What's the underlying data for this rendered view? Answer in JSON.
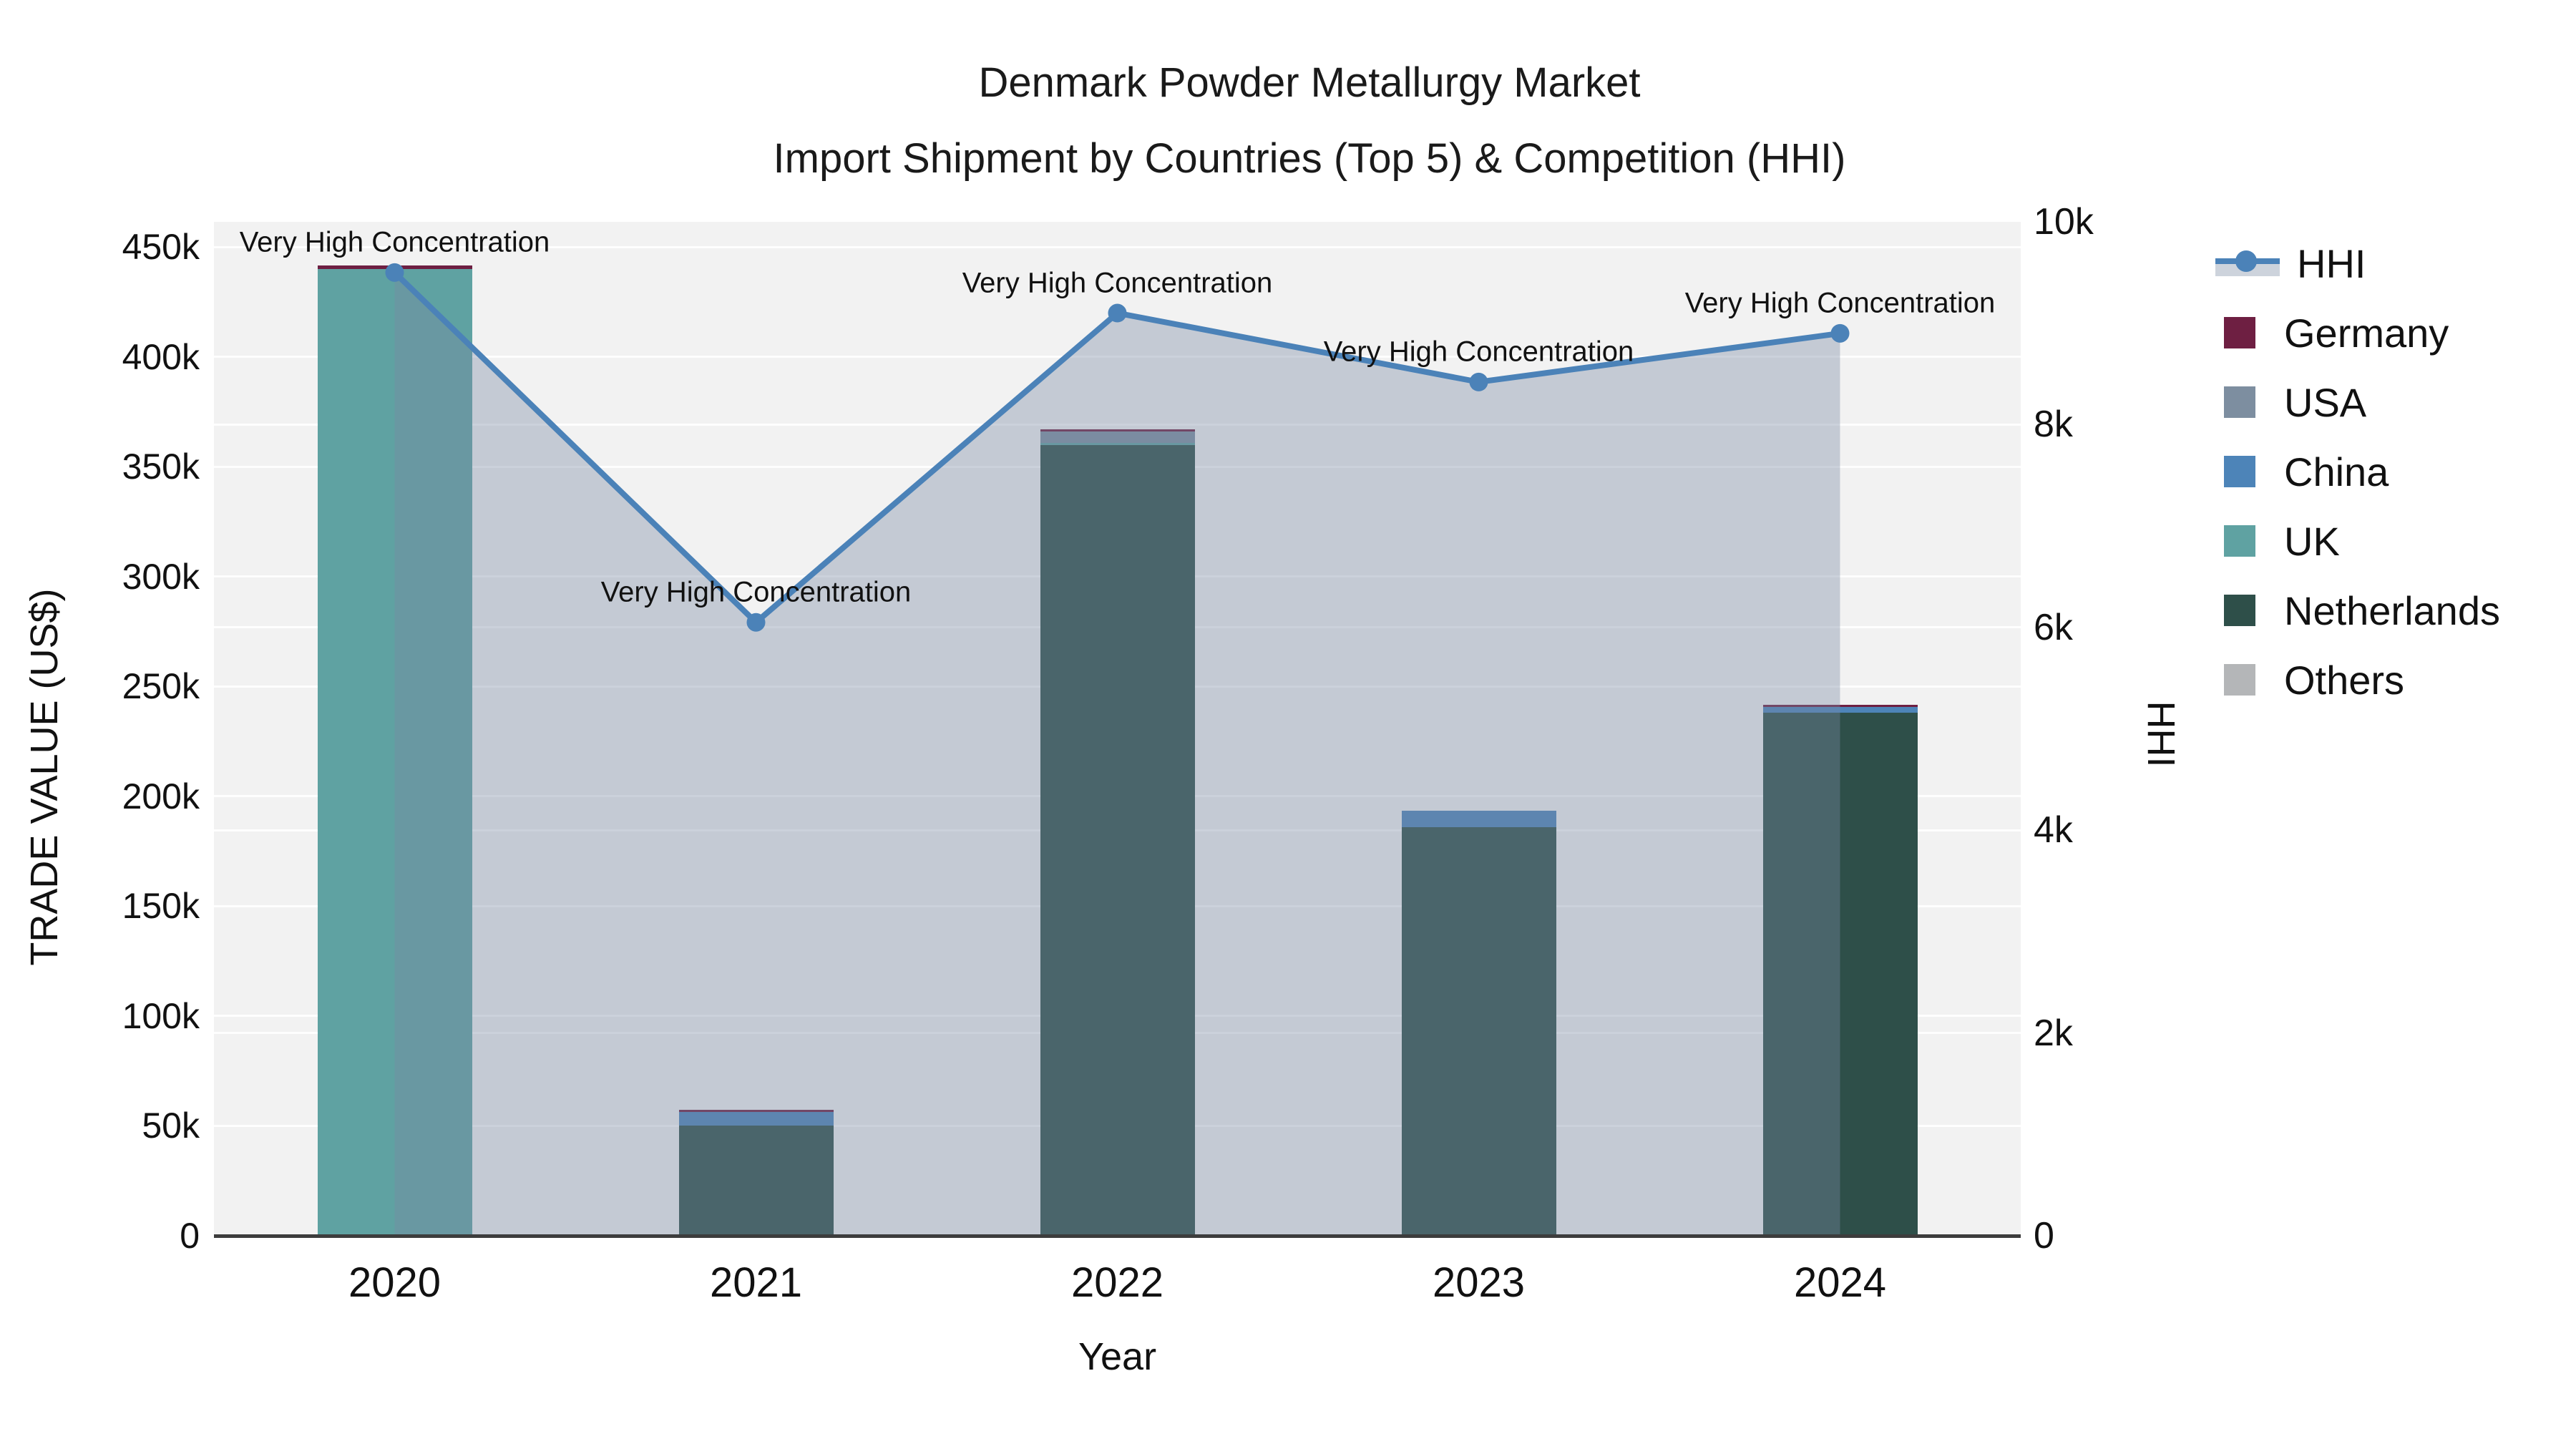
{
  "title": {
    "line1": "Denmark Powder Metallurgy Market",
    "line2": "Import Shipment by Countries (Top 5) & Competition (HHI)"
  },
  "colors": {
    "hhi_line": "#4b82b8",
    "hhi_fill": "rgba(122,136,162,0.38)",
    "germany": "#6e1f42",
    "usa": "#7d8ea0",
    "china": "#4d84b8",
    "uk": "#5fa2a2",
    "netherlands": "#2e4f49",
    "others": "#b4b6b8",
    "plot_bg": "#f2f2f2",
    "gridline": "#ffffff",
    "axis_line": "#3d3d3d"
  },
  "legend": {
    "items": [
      {
        "label": "HHI",
        "type": "line",
        "color": "#4b82b8"
      },
      {
        "label": "Germany",
        "type": "swatch",
        "color": "#6e1f42"
      },
      {
        "label": "USA",
        "type": "swatch",
        "color": "#7d8ea0"
      },
      {
        "label": "China",
        "type": "swatch",
        "color": "#4d84b8"
      },
      {
        "label": "UK",
        "type": "swatch",
        "color": "#5fa2a2"
      },
      {
        "label": "Netherlands",
        "type": "swatch",
        "color": "#2e4f49"
      },
      {
        "label": "Others",
        "type": "swatch",
        "color": "#b4b6b8"
      }
    ]
  },
  "chart_data": {
    "type": "bar",
    "subtype": "stacked-bars-with-line",
    "categories": [
      "2020",
      "2021",
      "2022",
      "2023",
      "2024"
    ],
    "series": [
      {
        "name": "Germany",
        "axis": "left",
        "values": [
          1500,
          800,
          1200,
          0,
          1000
        ]
      },
      {
        "name": "USA",
        "axis": "left",
        "values": [
          0,
          0,
          5000,
          0,
          0
        ]
      },
      {
        "name": "China",
        "axis": "left",
        "values": [
          0,
          6500,
          0,
          7500,
          2800
        ]
      },
      {
        "name": "UK",
        "axis": "left",
        "values": [
          440000,
          0,
          1000,
          0,
          0
        ]
      },
      {
        "name": "Netherlands",
        "axis": "left",
        "values": [
          0,
          50000,
          360000,
          186000,
          238000
        ]
      },
      {
        "name": "Others",
        "axis": "left",
        "values": [
          0,
          0,
          0,
          0,
          0
        ]
      }
    ],
    "stack_order_bottom_to_top": [
      "Others",
      "Netherlands",
      "UK",
      "China",
      "USA",
      "Germany"
    ],
    "line_series": {
      "name": "HHI",
      "axis": "right",
      "values": [
        9500,
        6050,
        9100,
        8420,
        8900
      ]
    },
    "annotations": [
      {
        "category": "2020",
        "text": "Very High Concentration"
      },
      {
        "category": "2021",
        "text": "Very High Concentration"
      },
      {
        "category": "2022",
        "text": "Very High Concentration"
      },
      {
        "category": "2023",
        "text": "Very High Concentration"
      },
      {
        "category": "2024",
        "text": "Very High Concentration"
      }
    ],
    "title": "Denmark Powder Metallurgy Market Import Shipment by Countries (Top 5) & Competition (HHI)",
    "xlabel": "Year",
    "ylabel_left": "TRADE VALUE (US$)",
    "ylabel_right": "HHI",
    "y_left": {
      "tick_labels": [
        "0",
        "50k",
        "100k",
        "150k",
        "200k",
        "250k",
        "300k",
        "350k",
        "400k",
        "450k"
      ],
      "tick_values": [
        0,
        50000,
        100000,
        150000,
        200000,
        250000,
        300000,
        350000,
        400000,
        450000
      ],
      "range": [
        0,
        461500
      ]
    },
    "y_right": {
      "tick_labels": [
        "0",
        "2k",
        "4k",
        "6k",
        "8k",
        "10k"
      ],
      "tick_values": [
        0,
        2000,
        4000,
        6000,
        8000,
        10000
      ],
      "range": [
        0,
        10000
      ]
    },
    "grid": true,
    "legend_position": "right"
  }
}
